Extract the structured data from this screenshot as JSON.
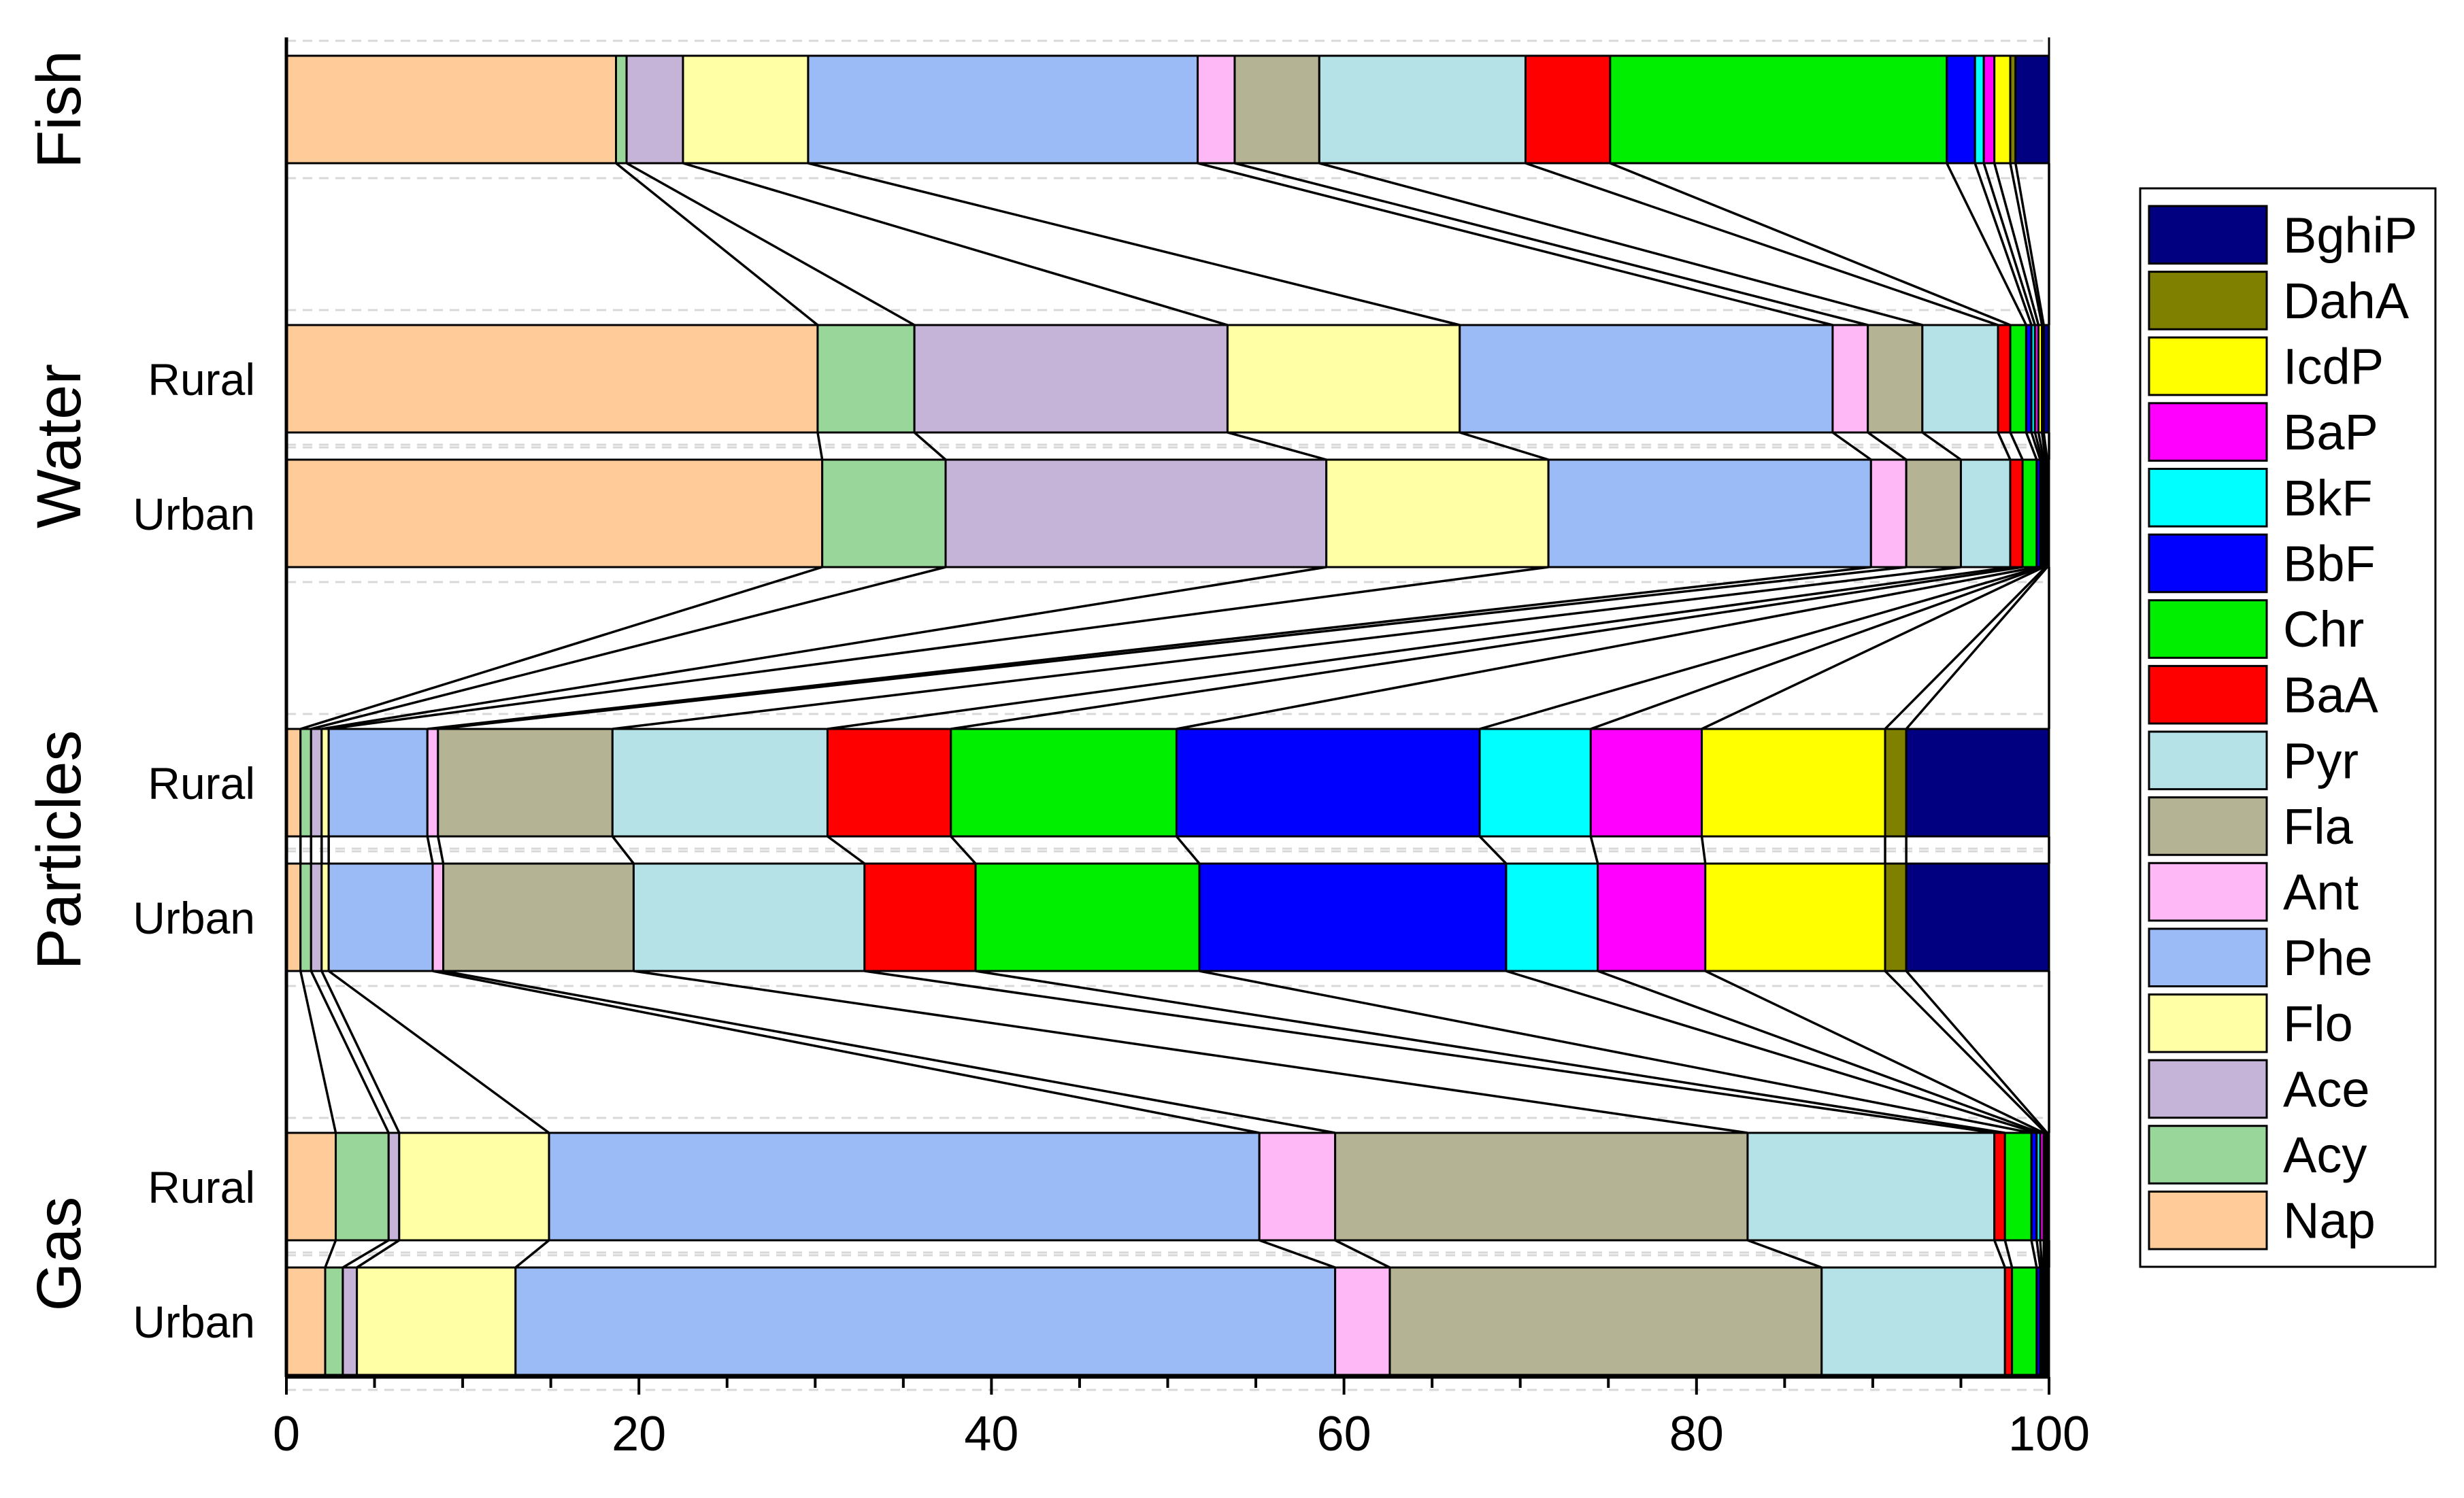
{
  "chart_data": {
    "type": "bar",
    "orientation": "horizontal",
    "stacked": true,
    "normalized_percent": true,
    "connector_lines": true,
    "xlim": [
      0,
      100
    ],
    "xticks": [
      "0",
      "20",
      "40",
      "60",
      "80",
      "100"
    ],
    "legend_position": "right",
    "series": [
      {
        "name": "Nap",
        "color": "#FFCC99"
      },
      {
        "name": "Acy",
        "color": "#99D69A"
      },
      {
        "name": "Ace",
        "color": "#C6B4D8"
      },
      {
        "name": "Flo",
        "color": "#FFFFA6"
      },
      {
        "name": "Phe",
        "color": "#9BBBF6"
      },
      {
        "name": "Ant",
        "color": "#FFB8F6"
      },
      {
        "name": "Fla",
        "color": "#B4B494"
      },
      {
        "name": "Pyr",
        "color": "#B5E2E6"
      },
      {
        "name": "BaA",
        "color": "#FF0000"
      },
      {
        "name": "Chr",
        "color": "#00EE00"
      },
      {
        "name": "BbF",
        "color": "#0000FF"
      },
      {
        "name": "BkF",
        "color": "#00FFFF"
      },
      {
        "name": "BaP",
        "color": "#FF00FF"
      },
      {
        "name": "IcdP",
        "color": "#FFFF00"
      },
      {
        "name": "DahA",
        "color": "#808000"
      },
      {
        "name": "BghiP",
        "color": "#000080"
      }
    ],
    "groups": [
      {
        "name": "Fish",
        "rows": [
          {
            "label": "",
            "values": [
              18.7,
              0.6,
              3.2,
              7.1,
              22.1,
              2.1,
              4.8,
              11.7,
              4.8,
              19.1,
              1.6,
              0.5,
              0.6,
              0.9,
              0.3,
              1.9
            ]
          }
        ]
      },
      {
        "name": "Water",
        "rows": [
          {
            "label": "Rural",
            "values": [
              30.2,
              5.5,
              17.8,
              13.2,
              21.2,
              2.0,
              3.1,
              4.3,
              0.7,
              0.9,
              0.3,
              0.2,
              0.2,
              0.2,
              0.1,
              0.3
            ]
          },
          {
            "label": "Urban",
            "values": [
              30.4,
              7.0,
              21.6,
              12.6,
              18.3,
              2.0,
              3.1,
              2.8,
              0.7,
              0.8,
              0.2,
              0.1,
              0.1,
              0.1,
              0.1,
              0.1
            ]
          }
        ]
      },
      {
        "name": "Particles",
        "rows": [
          {
            "label": "Rural",
            "values": [
              0.8,
              0.6,
              0.6,
              0.4,
              5.6,
              0.6,
              9.9,
              12.2,
              7.0,
              12.8,
              17.2,
              6.3,
              6.3,
              10.4,
              1.2,
              8.1
            ]
          },
          {
            "label": "Urban",
            "values": [
              0.8,
              0.6,
              0.6,
              0.4,
              5.9,
              0.6,
              10.8,
              13.1,
              6.3,
              12.7,
              17.4,
              5.2,
              6.1,
              10.2,
              1.2,
              8.1
            ]
          }
        ]
      },
      {
        "name": "Gas",
        "rows": [
          {
            "label": "Rural",
            "values": [
              2.8,
              3.0,
              0.6,
              8.5,
              40.3,
              4.3,
              23.4,
              14.0,
              0.6,
              1.5,
              0.3,
              0.2,
              0.2,
              0.1,
              0.1,
              0.1
            ]
          },
          {
            "label": "Urban",
            "values": [
              2.2,
              1.0,
              0.8,
              9.0,
              46.5,
              3.1,
              24.5,
              10.4,
              0.4,
              1.4,
              0.2,
              0.1,
              0.1,
              0.1,
              0.1,
              0.1
            ]
          }
        ]
      }
    ]
  }
}
